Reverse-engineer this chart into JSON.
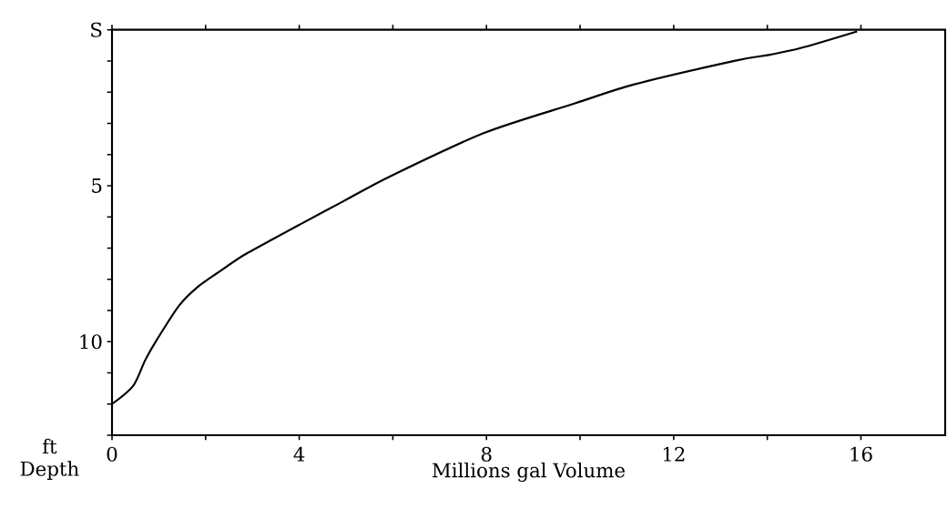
{
  "chart_data": {
    "type": "line",
    "xlabel": "Millions gal Volume",
    "ylabel": "Depth",
    "annotations": [
      "ft"
    ],
    "x": [
      0,
      0.45,
      0.71,
      0.97,
      1.43,
      1.82,
      2.27,
      2.79,
      3.44,
      4.03,
      4.94,
      5.97,
      7.95,
      9.89,
      11.16,
      13.32,
      14.06,
      14.73,
      15.92
    ],
    "series": [
      {
        "color": "#000000",
        "values": [
          12.0,
          11.42,
          10.59,
          9.91,
          8.85,
          8.26,
          7.78,
          7.25,
          6.71,
          6.23,
          5.5,
          4.68,
          3.31,
          2.36,
          1.75,
          0.99,
          0.8,
          0.58,
          0.05
        ]
      }
    ],
    "xlim": [
      0,
      17.8
    ],
    "ylim": [
      13,
      0
    ],
    "xticks": [
      0,
      {
        "value": 2,
        "label": null
      },
      4,
      {
        "value": 6,
        "label": null
      },
      8,
      {
        "value": 10,
        "label": null
      },
      12,
      {
        "value": 14,
        "label": null
      },
      16
    ],
    "yticks": [
      {
        "value": 0,
        "label": "S"
      },
      {
        "value": 1,
        "label": null
      },
      {
        "value": 2,
        "label": null
      },
      {
        "value": 3,
        "label": null
      },
      {
        "value": 4,
        "label": null
      },
      5,
      {
        "value": 6,
        "label": null
      },
      {
        "value": 7,
        "label": null
      },
      {
        "value": 8,
        "label": null
      },
      {
        "value": 9,
        "label": null
      },
      10,
      {
        "value": 11,
        "label": null
      },
      {
        "value": 12,
        "label": null
      },
      {
        "value": 13,
        "label": null
      }
    ],
    "grid": false,
    "marker": "none",
    "line_style": "solid"
  }
}
